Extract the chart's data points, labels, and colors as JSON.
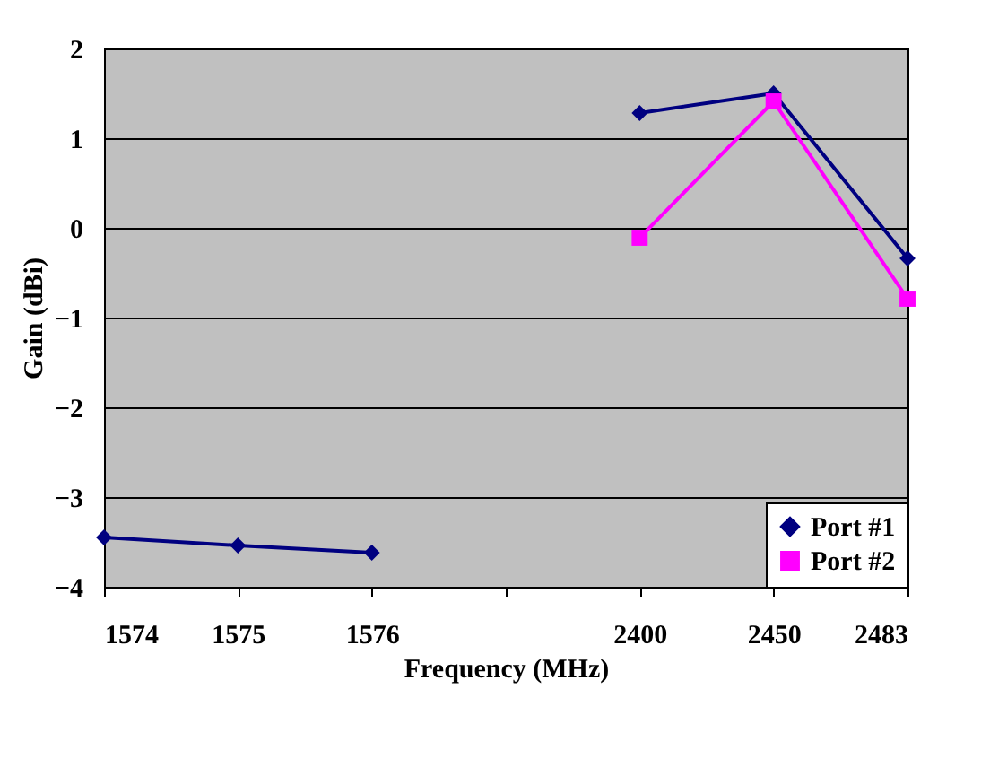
{
  "chart_data": {
    "type": "line",
    "xlabel": "Frequency (MHz)",
    "ylabel": "Gain (dBi)",
    "categories": [
      "1574",
      "1575",
      "1576",
      null,
      "2400",
      "2450",
      "2483"
    ],
    "series": [
      {
        "name": "Port #1",
        "color": "#000080",
        "marker": "diamond",
        "values": [
          -3.45,
          -3.54,
          -3.62,
          null,
          1.28,
          1.5,
          -0.34
        ]
      },
      {
        "name": "Port #2",
        "color": "#ff00ff",
        "marker": "square",
        "values": [
          null,
          null,
          null,
          null,
          -0.11,
          1.41,
          -0.79
        ]
      }
    ],
    "ylim": [
      -4,
      2
    ],
    "yticks": [
      -4,
      -3,
      -2,
      -1,
      0,
      1,
      2
    ],
    "grid": "y",
    "legend": "bottom right",
    "line_style": "solid"
  }
}
